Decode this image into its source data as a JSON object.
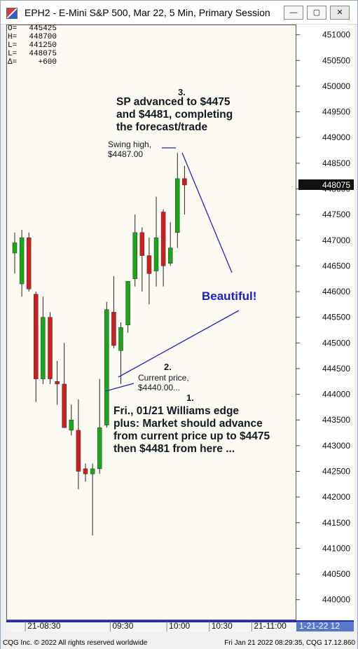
{
  "window": {
    "title": "EPH2 - E-Mini S&P 500, Mar 22, 5 Min, Primary Session",
    "buttons": {
      "minimize": "—",
      "maximize": "▢",
      "close": "✕"
    }
  },
  "ohlc_box": [
    {
      "key": "O=",
      "value": "445425"
    },
    {
      "key": "H=",
      "value": "448700"
    },
    {
      "key": "L=",
      "value": "441250"
    },
    {
      "key": "L=",
      "value": "448075"
    },
    {
      "key": "Δ=",
      "value": "+600"
    }
  ],
  "annotations": {
    "note3_number": "3.",
    "note3_line1": "SP advanced to $4475",
    "note3_line2": "and $4481, completing",
    "note3_line3": "the forecast/trade",
    "swing_high_line1": "Swing high,",
    "swing_high_line2": "$4487.00",
    "beautiful": "Beautiful!",
    "note2_number": "2.",
    "note2_line1": "Current price,",
    "note2_line2": "$4440.00...",
    "note1_number": "1.",
    "note1_line1": "Fri., 01/21 Williams edge",
    "note1_line2": "plus: Market should advance",
    "note1_line3": "from current price up to $4475",
    "note1_line4": "then $4481 from here ..."
  },
  "status_bar": {
    "copyright": "CQG Inc. © 2022 All rights reserved worldwide",
    "timestamp": "Fri Jan 21 2022 08:29:35, CQG 17.12.860"
  },
  "colors": {
    "up": "#19a619",
    "down": "#cc1f1f",
    "annotation_line": "#2424b4",
    "beautiful_text": "#1a1ad0",
    "price_marker_bg": "#111111"
  },
  "chart_data": {
    "type": "candlestick",
    "title": "EPH2 - E-Mini S&P 500, Mar 22, 5 Min, Primary Session",
    "ylim": [
      439600,
      451200
    ],
    "y_ticks": [
      440000,
      440500,
      441000,
      441500,
      442000,
      442500,
      443000,
      443500,
      444000,
      444500,
      445000,
      445500,
      446000,
      446500,
      447000,
      447500,
      448000,
      448500,
      449000,
      449500,
      450000,
      450500,
      451000
    ],
    "y_tick_labels": [
      "440000",
      "440500",
      "441000",
      "441500",
      "442000",
      "442500",
      "443000",
      "443500",
      "444000",
      "444500",
      "445000",
      "445500",
      "446000",
      "446500",
      "447000",
      "447500",
      "448000",
      "448500",
      "449000",
      "449500",
      "450000",
      "450500",
      "451000"
    ],
    "last_price": 448075,
    "last_price_label": "448075",
    "x_tick_labels": [
      {
        "bar": 1.5,
        "label": "21-08:30"
      },
      {
        "bar": 13.5,
        "label": "09:30"
      },
      {
        "bar": 21.5,
        "label": "10:00"
      },
      {
        "bar": 27.5,
        "label": "10:30"
      },
      {
        "bar": 33.5,
        "label": "21-11:00"
      }
    ],
    "x_right_label": "1-21-22  12",
    "candles": [
      {
        "o": 446750,
        "h": 447150,
        "l": 446350,
        "c": 446950
      },
      {
        "o": 446150,
        "h": 447200,
        "l": 445900,
        "c": 447050
      },
      {
        "o": 447050,
        "h": 447150,
        "l": 446000,
        "c": 446050
      },
      {
        "o": 445950,
        "h": 446000,
        "l": 443850,
        "c": 444300
      },
      {
        "o": 444300,
        "h": 445900,
        "l": 444200,
        "c": 445500
      },
      {
        "o": 445500,
        "h": 445600,
        "l": 444200,
        "c": 444300
      },
      {
        "o": 444250,
        "h": 444650,
        "l": 443800,
        "c": 444200
      },
      {
        "o": 444200,
        "h": 445000,
        "l": 443350,
        "c": 443350
      },
      {
        "o": 443300,
        "h": 443800,
        "l": 443200,
        "c": 443500
      },
      {
        "o": 443300,
        "h": 443900,
        "l": 442150,
        "c": 442500
      },
      {
        "o": 442550,
        "h": 442650,
        "l": 442300,
        "c": 442450
      },
      {
        "o": 442450,
        "h": 442650,
        "l": 441250,
        "c": 442550
      },
      {
        "o": 442550,
        "h": 444300,
        "l": 442450,
        "c": 443350
      },
      {
        "o": 443400,
        "h": 445800,
        "l": 443350,
        "c": 445650
      },
      {
        "o": 445600,
        "h": 446300,
        "l": 444900,
        "c": 444950
      },
      {
        "o": 444850,
        "h": 445400,
        "l": 444200,
        "c": 445300
      },
      {
        "o": 445350,
        "h": 446200,
        "l": 445200,
        "c": 446200
      },
      {
        "o": 446250,
        "h": 447500,
        "l": 446100,
        "c": 447150
      },
      {
        "o": 447150,
        "h": 447250,
        "l": 446000,
        "c": 446700
      },
      {
        "o": 446700,
        "h": 447050,
        "l": 445750,
        "c": 446350
      },
      {
        "o": 446400,
        "h": 447850,
        "l": 446100,
        "c": 447050
      },
      {
        "o": 447550,
        "h": 447600,
        "l": 446100,
        "c": 446500
      },
      {
        "o": 446550,
        "h": 447350,
        "l": 446500,
        "c": 446850
      },
      {
        "o": 447150,
        "h": 448700,
        "l": 446850,
        "c": 448200
      },
      {
        "o": 448200,
        "h": 448450,
        "l": 447500,
        "c": 448075
      }
    ]
  }
}
